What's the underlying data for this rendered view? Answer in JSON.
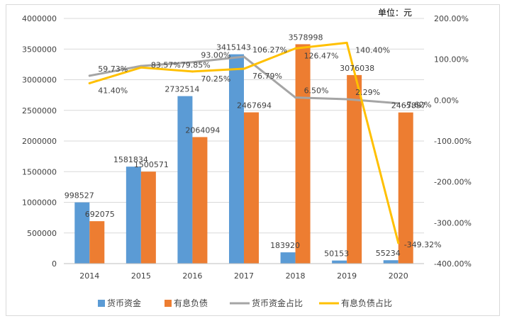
{
  "chart_data": {
    "type": "bar",
    "unit_label": "单位：元",
    "categories": [
      "2014",
      "2015",
      "2016",
      "2017",
      "2018",
      "2019",
      "2020"
    ],
    "series": [
      {
        "name": "货币资金",
        "kind": "bar",
        "axis": "left",
        "color": "#5b9bd5",
        "values": [
          998527,
          1581834,
          2732514,
          3415143,
          183920,
          50153,
          55234
        ],
        "labels": [
          "998527",
          "1581834",
          "2732514",
          "3415143",
          "183920",
          "50153",
          "55234"
        ]
      },
      {
        "name": "有息负债",
        "kind": "bar",
        "axis": "left",
        "color": "#ed7d31",
        "values": [
          692075,
          1500571,
          2064094,
          2467694,
          3578998,
          3076038,
          2465897
        ],
        "labels": [
          "692075",
          "1500571",
          "2064094",
          "2467694",
          "3578998",
          "3076038",
          "2465897"
        ]
      },
      {
        "name": "货币资金占比",
        "kind": "line",
        "axis": "right",
        "color": "#a5a5a5",
        "values": [
          59.73,
          83.57,
          93.0,
          106.27,
          6.5,
          2.29,
          -7.62
        ],
        "labels": [
          "59.73%",
          "",
          "93.00%",
          "106.27%",
          "6.50%",
          "2.29%",
          "-7.62%"
        ]
      },
      {
        "name": "有息负债占比",
        "kind": "line",
        "axis": "right",
        "color": "#ffc000",
        "values": [
          41.4,
          79.85,
          70.25,
          76.79,
          126.47,
          140.4,
          -349.32
        ],
        "labels": [
          "41.40%",
          "",
          "70.25%",
          "76.79%",
          "126.47%",
          "140.40%",
          "-349.32%"
        ]
      }
    ],
    "overlap_label_2015": "83.57%79.85%",
    "left_axis": {
      "min": 0,
      "max": 4000000,
      "step": 500000,
      "ticks": [
        "0",
        "500000",
        "1000000",
        "1500000",
        "2000000",
        "2500000",
        "3000000",
        "3500000",
        "4000000"
      ]
    },
    "right_axis": {
      "min": -400,
      "max": 200,
      "step": 100,
      "ticks": [
        "-400.00%",
        "-300.00%",
        "-200.00%",
        "-100.00%",
        "0.00%",
        "100.00%",
        "200.00%"
      ]
    },
    "grid": true,
    "legend_position": "bottom"
  }
}
